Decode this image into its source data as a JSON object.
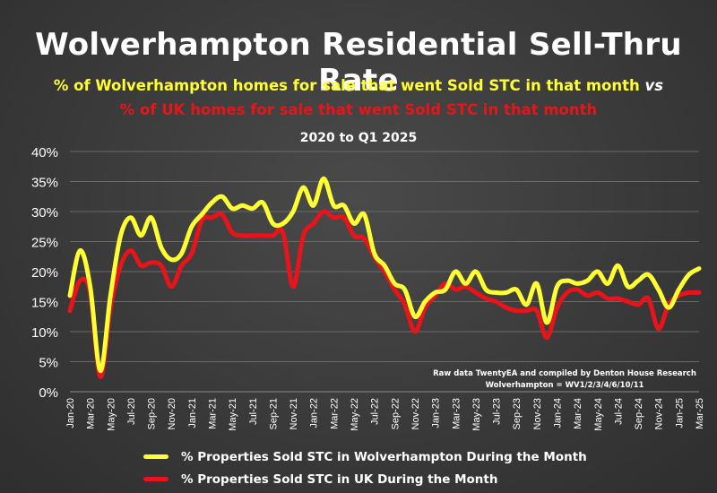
{
  "title": "Wolverhampton Residential Sell-Thru Rate",
  "subtitle_line1": "% of Wolverhampton homes for sale that went Sold STC in that month",
  "subtitle_vs": "vs",
  "subtitle_line2": "% of UK homes for sale that went Sold STC in that month",
  "period": "2020 to Q1 2025",
  "note_line1": "Raw data TwentyEA and compiled by Denton House Research",
  "note_line2": "Wolverhampton  = WV1/2/3/4/6/10/11",
  "colors": {
    "wolverhampton": "#ffff33",
    "uk": "#e8141a",
    "text": "#ffffff",
    "grid": "#6a6a6a"
  },
  "legend": [
    {
      "label": "% Properties Sold STC in Wolverhampton During the Month",
      "color": "#ffff33"
    },
    {
      "label": "% Properties Sold STC in UK During the Month",
      "color": "#e8141a"
    }
  ],
  "chart_data": {
    "type": "line",
    "ylim": [
      0,
      40
    ],
    "y_ticks": [
      "0%",
      "5%",
      "10%",
      "15%",
      "20%",
      "25%",
      "30%",
      "35%",
      "40%"
    ],
    "grid": true,
    "legend_position": "bottom",
    "x": [
      "Jan-20",
      "Feb-20",
      "Mar-20",
      "Apr-20",
      "May-20",
      "Jun-20",
      "Jul-20",
      "Aug-20",
      "Sep-20",
      "Oct-20",
      "Nov-20",
      "Dec-20",
      "Jan-21",
      "Feb-21",
      "Mar-21",
      "Apr-21",
      "May-21",
      "Jun-21",
      "Jul-21",
      "Aug-21",
      "Sep-21",
      "Oct-21",
      "Nov-21",
      "Dec-21",
      "Jan-22",
      "Feb-22",
      "Mar-22",
      "Apr-22",
      "May-22",
      "Jun-22",
      "Jul-22",
      "Aug-22",
      "Sep-22",
      "Oct-22",
      "Nov-22",
      "Dec-22",
      "Jan-23",
      "Feb-23",
      "Mar-23",
      "Apr-23",
      "May-23",
      "Jun-23",
      "Jul-23",
      "Aug-23",
      "Sep-23",
      "Oct-23",
      "Nov-23",
      "Dec-23",
      "Jan-24",
      "Feb-24",
      "Mar-24",
      "Apr-24",
      "May-24",
      "Jun-24",
      "Jul-24",
      "Aug-24",
      "Sep-24",
      "Oct-24",
      "Nov-24",
      "Dec-24",
      "Jan-25",
      "Feb-25",
      "Mar-25"
    ],
    "x_tick_labels": [
      "Jan-20",
      "Mar-20",
      "May-20",
      "Jul-20",
      "Sep-20",
      "Nov-20",
      "Jan-21",
      "Mar-21",
      "May-21",
      "Jul-21",
      "Sep-21",
      "Nov-21",
      "Jan-22",
      "Mar-22",
      "May-22",
      "Jul-22",
      "Sep-22",
      "Nov-22",
      "Jan-23",
      "Mar-23",
      "May-23",
      "Jul-23",
      "Sep-23",
      "Nov-23",
      "Jan-24",
      "Mar-24",
      "May-24",
      "Jul-24",
      "Sep-24",
      "Nov-24",
      "Jan-25",
      "Mar-25"
    ],
    "series": [
      {
        "name": "% Properties Sold STC in Wolverhampton During the Month",
        "color": "#ffff33",
        "values": [
          16,
          23.5,
          17.5,
          3.5,
          16,
          26,
          29,
          26,
          29,
          24,
          22,
          23,
          27.5,
          29.5,
          31.5,
          32.5,
          30.5,
          31,
          30.5,
          31.5,
          28,
          28,
          30,
          34,
          31,
          35.5,
          31,
          31,
          28,
          29.5,
          23,
          21,
          18,
          17,
          12.5,
          15,
          16.5,
          17,
          20,
          18,
          20,
          17,
          16.5,
          16.5,
          17,
          14.5,
          18,
          11.5,
          17.5,
          18.5,
          18,
          18.5,
          20,
          18,
          21,
          17.5,
          18.5,
          19.5,
          17,
          14,
          17,
          19.5,
          20.5
        ]
      },
      {
        "name": "% Properties Sold STC in UK During the Month",
        "color": "#e8141a",
        "values": [
          13.5,
          18.5,
          16.5,
          2.5,
          14,
          21,
          23.5,
          21,
          21.5,
          21,
          17.5,
          21,
          23,
          28.5,
          29,
          29.5,
          26.5,
          26,
          26,
          26,
          26,
          26.5,
          17.5,
          26,
          28,
          30,
          29,
          29,
          26,
          25.5,
          22.5,
          20,
          17,
          14.5,
          10,
          14,
          16,
          18,
          17,
          17.5,
          16.5,
          15.5,
          15,
          14,
          13.5,
          13.5,
          13.5,
          9,
          14,
          16.5,
          17,
          16,
          16.5,
          15.5,
          15.5,
          15,
          14.5,
          15.5,
          10.5,
          14.5,
          16,
          16.5,
          16.5
        ]
      }
    ]
  }
}
